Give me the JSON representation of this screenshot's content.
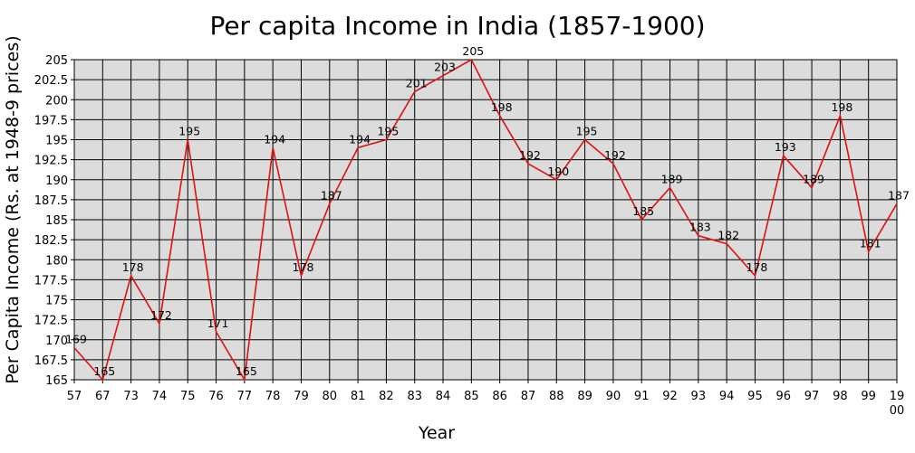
{
  "chart_data": {
    "type": "line",
    "title": "Per capita Income in India (1857-1900)",
    "xlabel": "Year",
    "ylabel": "Per Capita Income (Rs. at 1948-9 prices)",
    "categories": [
      "57",
      "67",
      "73",
      "74",
      "75",
      "76",
      "77",
      "78",
      "79",
      "80",
      "81",
      "82",
      "83",
      "84",
      "85",
      "86",
      "87",
      "88",
      "89",
      "90",
      "91",
      "92",
      "93",
      "94",
      "95",
      "96",
      "97",
      "98",
      "99",
      "19\n00"
    ],
    "values": [
      169,
      165,
      178,
      172,
      195,
      171,
      165,
      194,
      178,
      187,
      194,
      195,
      201,
      203,
      205,
      198,
      192,
      190,
      195,
      192,
      185,
      189,
      183,
      182,
      178,
      193,
      189,
      198,
      181,
      187
    ],
    "ylim": [
      165,
      205
    ],
    "yticks": [
      "165",
      "167.5",
      "170",
      "172.5",
      "175",
      "177.5",
      "180",
      "182.5",
      "185",
      "187.5",
      "190",
      "192.5",
      "195",
      "197.5",
      "200",
      "202.5",
      "205"
    ],
    "grid": true,
    "legend": "none",
    "colors": {
      "line": "#e01010",
      "plot_bg": "#dcdcdc",
      "grid": "#000000"
    }
  }
}
